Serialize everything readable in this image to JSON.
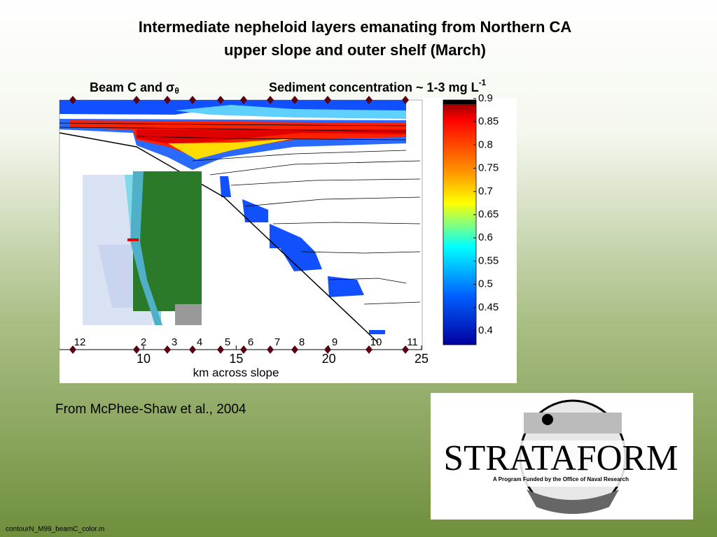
{
  "title": [
    "Intermediate nepheloid layers emanating from Northern CA",
    "upper slope and outer shelf (March)"
  ],
  "figure": {
    "label_left": "Beam C and σ",
    "label_left_sub": "θ",
    "label_right": "Sediment concentration  ~ 1-3 mg L",
    "label_right_sup": "-1",
    "stations": [
      "12",
      "2",
      "3",
      "4",
      "5",
      "6",
      "7",
      "8",
      "9",
      "10",
      "11"
    ],
    "x_axis": {
      "label": "km across slope",
      "ticks": [
        10,
        15,
        20,
        25
      ]
    },
    "colorbar": {
      "ticks": [
        0.9,
        0.85,
        0.8,
        0.75,
        0.7,
        0.65,
        0.6,
        0.55,
        0.5,
        0.45,
        0.4
      ]
    }
  },
  "citation": "From McPhee-Shaw et al., 2004",
  "logo": {
    "name": "STRATAFORM",
    "tagline": "A Program Funded by the Office of Naval Research"
  },
  "footer": "contourN_M99_beamC_color.m"
}
